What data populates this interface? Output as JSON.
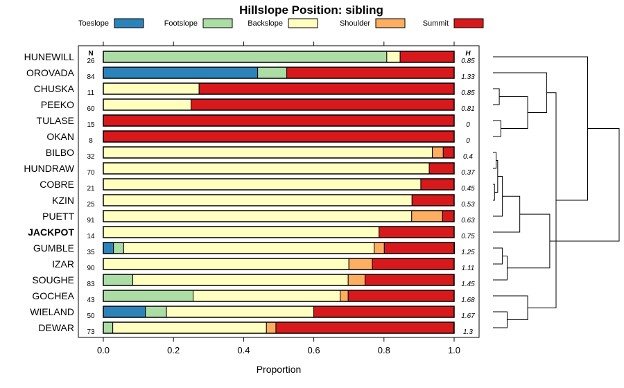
{
  "chart_data": {
    "type": "bar",
    "subtype": "stacked-horizontal-proportion",
    "title": "Hillslope Position: sibling",
    "xlabel": "Proportion",
    "ylabel": "",
    "xlim": [
      0,
      1
    ],
    "x_ticks": [
      "0.0",
      "0.2",
      "0.4",
      "0.6",
      "0.8",
      "1.0"
    ],
    "legend": {
      "placement": "top",
      "entries": [
        {
          "name": "Toeslope",
          "color": "#2b83ba"
        },
        {
          "name": "Footslope",
          "color": "#abdda4"
        },
        {
          "name": "Backslope",
          "color": "#ffffbf"
        },
        {
          "name": "Shoulder",
          "color": "#fdae61"
        },
        {
          "name": "Summit",
          "color": "#d7191c"
        }
      ]
    },
    "n_header": "N",
    "h_header": "H",
    "rows": [
      {
        "name": "HUNEWILL",
        "n": "26",
        "h": "0.85",
        "bold": false,
        "values": [
          0,
          0.808,
          0.038,
          0,
          0.154
        ]
      },
      {
        "name": "OROVADA",
        "n": "84",
        "h": "1.33",
        "bold": false,
        "values": [
          0.44,
          0.083,
          0,
          0,
          0.477
        ]
      },
      {
        "name": "CHUSKA",
        "n": "11",
        "h": "0.85",
        "bold": false,
        "values": [
          0,
          0,
          0.273,
          0,
          0.727
        ]
      },
      {
        "name": "PEEKO",
        "n": "60",
        "h": "0.81",
        "bold": false,
        "values": [
          0,
          0,
          0.25,
          0,
          0.75
        ]
      },
      {
        "name": "TULASE",
        "n": "15",
        "h": "0",
        "bold": false,
        "values": [
          0,
          0,
          0,
          0,
          1.0
        ]
      },
      {
        "name": "OKAN",
        "n": "8",
        "h": "0",
        "bold": false,
        "values": [
          0,
          0,
          0,
          0,
          1.0
        ]
      },
      {
        "name": "BILBO",
        "n": "32",
        "h": "0.4",
        "bold": false,
        "values": [
          0,
          0,
          0.938,
          0.031,
          0.031
        ]
      },
      {
        "name": "HUNDRAW",
        "n": "70",
        "h": "0.37",
        "bold": false,
        "values": [
          0,
          0,
          0.929,
          0,
          0.071
        ]
      },
      {
        "name": "COBRE",
        "n": "21",
        "h": "0.45",
        "bold": false,
        "values": [
          0,
          0,
          0.905,
          0,
          0.095
        ]
      },
      {
        "name": "KZIN",
        "n": "25",
        "h": "0.53",
        "bold": false,
        "values": [
          0,
          0,
          0.88,
          0,
          0.12
        ]
      },
      {
        "name": "PUETT",
        "n": "91",
        "h": "0.63",
        "bold": false,
        "values": [
          0,
          0,
          0.879,
          0.088,
          0.033
        ]
      },
      {
        "name": "JACKPOT",
        "n": "14",
        "h": "0.75",
        "bold": true,
        "values": [
          0,
          0,
          0.786,
          0,
          0.214
        ]
      },
      {
        "name": "GUMBLE",
        "n": "35",
        "h": "1.25",
        "bold": false,
        "values": [
          0.029,
          0.029,
          0.714,
          0.029,
          0.2
        ]
      },
      {
        "name": "IZAR",
        "n": "90",
        "h": "1.11",
        "bold": false,
        "values": [
          0,
          0,
          0.7,
          0.067,
          0.233
        ]
      },
      {
        "name": "SOUGHE",
        "n": "83",
        "h": "1.45",
        "bold": false,
        "values": [
          0,
          0.084,
          0.614,
          0.048,
          0.253
        ]
      },
      {
        "name": "GOCHEA",
        "n": "43",
        "h": "1.68",
        "bold": false,
        "values": [
          0,
          0.256,
          0.419,
          0.023,
          0.302
        ]
      },
      {
        "name": "WIELAND",
        "n": "50",
        "h": "1.67",
        "bold": false,
        "values": [
          0.12,
          0.06,
          0.42,
          0,
          0.4
        ]
      },
      {
        "name": "DEWAR",
        "n": "73",
        "h": "1.3",
        "bold": false,
        "values": [
          0,
          0.027,
          0.438,
          0.027,
          0.507
        ]
      }
    ],
    "dendrogram": {
      "leaf_order": [
        "HUNEWILL",
        "OROVADA",
        "CHUSKA",
        "PEEKO",
        "TULASE",
        "OKAN",
        "BILBO",
        "HUNDRAW",
        "COBRE",
        "KZIN",
        "PUETT",
        "JACKPOT",
        "GUMBLE",
        "IZAR",
        "SOUGHE",
        "GOCHEA",
        "WIELAND",
        "DEWAR"
      ],
      "merges": [
        {
          "a": "CHUSKA",
          "b": "PEEKO",
          "height": 0.02
        },
        {
          "a": "TULASE",
          "b": "OKAN",
          "height": 0.025
        },
        {
          "a": "BILBO",
          "b": "HUNDRAW",
          "height": 0.01
        },
        {
          "a": "COBRE",
          "b": "KZIN",
          "height": 0.005
        },
        {
          "a": "BILBO+HUNDRAW",
          "b": "COBRE+KZIN",
          "height": 0.015
        },
        {
          "a": "BILBO..KZIN",
          "b": "PUETT",
          "height": 0.03
        },
        {
          "a": "GUMBLE",
          "b": "IZAR",
          "height": 0.03
        },
        {
          "a": "SOUGHE",
          "b": "GUMBLE+IZAR",
          "height": 0.045
        },
        {
          "a": "WIELAND",
          "b": "DEWAR",
          "height": 0.045
        },
        {
          "a": "GOCHEA",
          "b": "WIELAND+DEWAR",
          "height": 0.11
        },
        {
          "a": "CHUSKA+PEEKO",
          "b": "TULASE+OKAN",
          "height": 0.11
        },
        {
          "a": "BILBO..PUETT",
          "b": "JACKPOT",
          "height": 0.085
        },
        {
          "a": "BILBO..JACKPOT",
          "b": "GUMBLE..SOUGHE",
          "height": 0.18
        },
        {
          "a": "CHUSKA..OKAN",
          "b": "OROVADA",
          "height": 0.17
        },
        {
          "a": "CHUSKA..OROVADA",
          "b": "GOCHEA..DEWAR",
          "height": 0.2
        },
        {
          "a": "CHUSKA..DEWAR",
          "b": "HUNEWILL",
          "height": 0.3
        },
        {
          "a": "ALL",
          "b": "BILBO..SOUGHE",
          "height": 0.4
        }
      ]
    }
  }
}
